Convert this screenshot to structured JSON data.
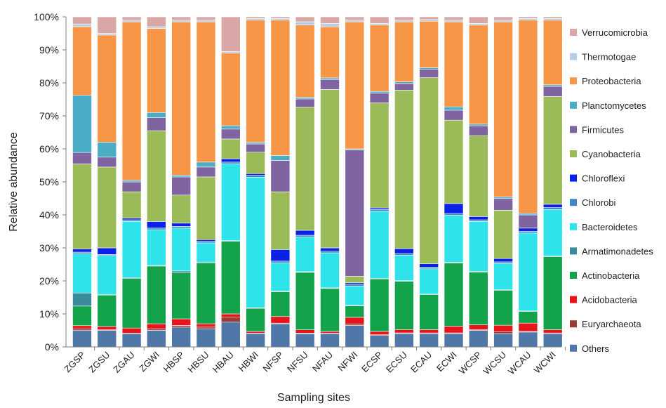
{
  "chart_data": {
    "type": "bar",
    "stacked": true,
    "percent": true,
    "xlabel": "Sampling sites",
    "ylabel": "Relative abundance",
    "ylim": [
      0,
      100
    ],
    "yticks": [
      "0%",
      "10%",
      "20%",
      "30%",
      "40%",
      "50%",
      "60%",
      "70%",
      "80%",
      "90%",
      "100%"
    ],
    "grid": false,
    "legend_position": "right",
    "categories": [
      "ZGSP",
      "ZGSU",
      "ZGAU",
      "ZGWI",
      "HBSP",
      "HBSU",
      "HBAU",
      "HBWI",
      "NFSP",
      "NFSU",
      "NFAU",
      "NFWI",
      "ECSP",
      "ECSU",
      "ECAU",
      "ECWI",
      "WCSP",
      "WCSU",
      "WCAU",
      "WCWI"
    ],
    "series": [
      {
        "name": "Others",
        "color": "#4f78a8",
        "values": [
          5.0,
          5.0,
          4.0,
          5.0,
          6.0,
          5.5,
          7.5,
          4.0,
          7.0,
          4.0,
          4.0,
          6.5,
          3.5,
          4.0,
          4.0,
          4.0,
          5.0,
          4.0,
          4.5,
          4.0
        ]
      },
      {
        "name": "Euryarchaeota",
        "color": "#9b3b35",
        "values": [
          0.5,
          0.2,
          0.2,
          0.5,
          0.5,
          0.5,
          1.5,
          0.2,
          0.2,
          0.2,
          0.2,
          0.5,
          0.2,
          0.2,
          0.2,
          0.2,
          0.2,
          0.5,
          0.2,
          0.2
        ]
      },
      {
        "name": "Acidobacteria",
        "color": "#e8141b",
        "values": [
          1.0,
          1.0,
          1.5,
          1.5,
          2.0,
          1.0,
          1.0,
          0.5,
          2.0,
          1.0,
          0.5,
          2.0,
          1.0,
          1.0,
          1.0,
          2.0,
          1.5,
          2.0,
          2.5,
          1.0
        ]
      },
      {
        "name": "Actinobacteria",
        "color": "#12a34b",
        "values": [
          6.0,
          9.5,
          15.0,
          17.5,
          14.0,
          18.5,
          22.0,
          7.0,
          7.5,
          17.5,
          13.0,
          3.5,
          16.0,
          14.5,
          10.5,
          19.0,
          16.0,
          10.5,
          3.5,
          22.0
        ]
      },
      {
        "name": "Armatimonadetes",
        "color": "#3a8b9c",
        "values": [
          4.0,
          0.2,
          0.3,
          0.2,
          0.5,
          0.2,
          0.2,
          0.2,
          0.2,
          0.2,
          0.2,
          0.2,
          0.2,
          0.2,
          0.2,
          0.2,
          0.2,
          0.2,
          0.2,
          0.2
        ]
      },
      {
        "name": "Bacteroidetes",
        "color": "#2ee3ea",
        "values": [
          12.0,
          11.8,
          17.0,
          10.8,
          13.0,
          5.8,
          23.3,
          39.5,
          8.6,
          10.6,
          10.6,
          5.8,
          20.4,
          7.6,
          7.6,
          14.1,
          15.1,
          7.8,
          23.6,
          14.0
        ]
      },
      {
        "name": "Chlorobi",
        "color": "#3f88c5",
        "values": [
          0.5,
          0.3,
          0.5,
          0.5,
          0.5,
          0.5,
          0.5,
          0.6,
          0.5,
          0.5,
          0.5,
          0.5,
          0.5,
          0.5,
          0.5,
          0.5,
          0.5,
          0.5,
          0.5,
          0.6
        ]
      },
      {
        "name": "Chloroflexi",
        "color": "#0a22e6",
        "values": [
          1.0,
          2.0,
          0.5,
          2.0,
          1.0,
          0.5,
          1.0,
          0.5,
          3.5,
          1.5,
          1.0,
          0.5,
          0.5,
          1.5,
          1.0,
          3.0,
          1.0,
          1.0,
          1.0,
          1.0
        ]
      },
      {
        "name": "Cyanobacteria",
        "color": "#9bbb59",
        "values": [
          26.0,
          24.5,
          8.0,
          27.5,
          8.5,
          19.0,
          6.0,
          6.5,
          17.5,
          37.5,
          48.0,
          2.0,
          32.0,
          47.5,
          56.0,
          25.0,
          24.5,
          14.5,
          0.0,
          32.5
        ]
      },
      {
        "name": "Firmicutes",
        "color": "#8064a2",
        "values": [
          3.5,
          3.0,
          3.0,
          4.0,
          5.5,
          3.0,
          3.0,
          2.5,
          9.5,
          2.5,
          3.0,
          38.5,
          3.0,
          2.0,
          2.5,
          3.0,
          3.0,
          3.5,
          4.0,
          3.0
        ]
      },
      {
        "name": "Planctomycetes",
        "color": "#4bacc6",
        "values": [
          17.5,
          4.5,
          0.5,
          1.5,
          0.5,
          1.5,
          1.0,
          0.5,
          1.5,
          0.5,
          0.5,
          0.3,
          0.5,
          0.5,
          0.5,
          1.0,
          0.5,
          0.5,
          0.5,
          0.5
        ]
      },
      {
        "name": "Proteobacteria",
        "color": "#f79646",
        "values": [
          21.0,
          32.5,
          48.0,
          25.5,
          46.5,
          42.5,
          22.0,
          37.0,
          41.0,
          22.0,
          15.5,
          38.7,
          20.2,
          18.0,
          14.0,
          25.5,
          30.0,
          52.5,
          58.5,
          19.5
        ]
      },
      {
        "name": "Thermotogae",
        "color": "#b9cde5",
        "values": [
          0.8,
          0.5,
          0.5,
          0.5,
          0.5,
          0.5,
          0.5,
          0.5,
          0.5,
          1.0,
          1.0,
          0.5,
          0.5,
          0.5,
          0.5,
          0.5,
          0.5,
          0.5,
          0.5,
          0.5
        ]
      },
      {
        "name": "Verrucomicrobia",
        "color": "#d9a7a5",
        "values": [
          2.2,
          5.0,
          1.0,
          3.0,
          1.0,
          1.0,
          10.5,
          0.5,
          0.5,
          1.5,
          2.0,
          1.0,
          2.0,
          1.0,
          0.8,
          1.0,
          2.0,
          1.0,
          0.5,
          0.5
        ]
      }
    ]
  }
}
